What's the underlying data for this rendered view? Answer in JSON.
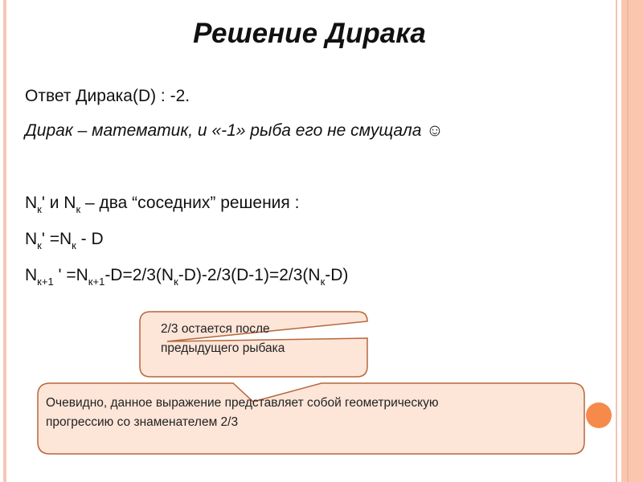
{
  "title": "Решение Дирака",
  "lines": {
    "answer": "Ответ Дирака(D) : -2.",
    "comment": "Дирак – математик, и «-1» рыба его не смущала ☺",
    "l3": [
      {
        "t": "N"
      },
      {
        "s": "к"
      },
      {
        "t": "' и N"
      },
      {
        "s": "к"
      },
      {
        "t": " – два “соседних” решения :"
      }
    ],
    "l4": [
      {
        "t": "N"
      },
      {
        "s": "к"
      },
      {
        "t": "' =N"
      },
      {
        "s": "к"
      },
      {
        "t": " - D"
      }
    ],
    "l5": [
      {
        "t": "N"
      },
      {
        "s": "к+1"
      },
      {
        "t": " ' =N"
      },
      {
        "s": "к+1"
      },
      {
        "t": "-D=2/3(N"
      },
      {
        "s": "к"
      },
      {
        "t": "-D)-2/3(D-1)=2/3(N"
      },
      {
        "s": "к"
      },
      {
        "t": "-D)"
      }
    ]
  },
  "callouts": {
    "first": [
      "2/3 остается после",
      "предыдущего рыбака"
    ],
    "second": [
      "Очевидно, данное выражение представляет собой геометрическую",
      "прогрессию со знаменателем 2/3"
    ]
  },
  "colors": {
    "callout_fill": "#fde5d8",
    "callout_border": "#b5673a",
    "accent": "#f58a4b",
    "border": "#fbc6ae"
  }
}
